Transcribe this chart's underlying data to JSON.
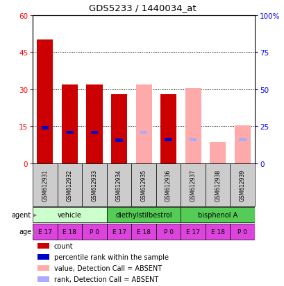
{
  "title": "GDS5233 / 1440034_at",
  "samples": [
    "GSM612931",
    "GSM612932",
    "GSM612933",
    "GSM612934",
    "GSM612935",
    "GSM612936",
    "GSM612937",
    "GSM612938",
    "GSM612939"
  ],
  "count_values": [
    50,
    32,
    32,
    28,
    null,
    28,
    null,
    null,
    null
  ],
  "rank_values": [
    24,
    21,
    21,
    15.5,
    null,
    16,
    null,
    null,
    null
  ],
  "absent_count": [
    null,
    null,
    null,
    null,
    32,
    null,
    30.5,
    8.5,
    15.5
  ],
  "absent_rank": [
    null,
    null,
    null,
    null,
    21,
    null,
    16,
    null,
    16
  ],
  "count_color": "#cc0000",
  "rank_color": "#0000cc",
  "absent_count_color": "#ffaaaa",
  "absent_rank_color": "#aaaaff",
  "agent_groups": [
    {
      "label": "vehicle",
      "cols": [
        0,
        1,
        2
      ],
      "color": "#ccffcc"
    },
    {
      "label": "diethylstilbestrol",
      "cols": [
        3,
        4,
        5
      ],
      "color": "#55cc55"
    },
    {
      "label": "bisphenol A",
      "cols": [
        6,
        7,
        8
      ],
      "color": "#55cc55"
    }
  ],
  "age_labels": [
    "E 17",
    "E 18",
    "P 0",
    "E 17",
    "E 18",
    "P 0",
    "E 17",
    "E 18",
    "P 0"
  ],
  "age_color": "#dd44dd",
  "sample_header_color": "#cccccc",
  "legend_items": [
    {
      "label": "count",
      "color": "#cc0000"
    },
    {
      "label": "percentile rank within the sample",
      "color": "#0000cc"
    },
    {
      "label": "value, Detection Call = ABSENT",
      "color": "#ffaaaa"
    },
    {
      "label": "rank, Detection Call = ABSENT",
      "color": "#aaaaff"
    }
  ],
  "bar_width": 0.65,
  "rank_bar_width": 0.3,
  "left_ylim": [
    0,
    60
  ],
  "left_yticks": [
    0,
    15,
    30,
    45,
    60
  ],
  "right_ylim": [
    0,
    100
  ],
  "right_yticks": [
    0,
    25,
    50,
    75,
    100
  ],
  "right_yticklabels": [
    "0",
    "25",
    "50",
    "75",
    "100%"
  ]
}
